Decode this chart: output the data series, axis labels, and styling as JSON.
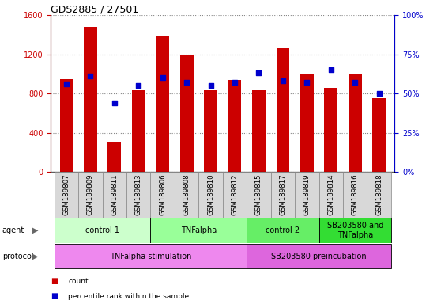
{
  "title": "GDS2885 / 27501",
  "samples": [
    "GSM189807",
    "GSM189809",
    "GSM189811",
    "GSM189813",
    "GSM189806",
    "GSM189808",
    "GSM189810",
    "GSM189812",
    "GSM189815",
    "GSM189817",
    "GSM189819",
    "GSM189814",
    "GSM189816",
    "GSM189818"
  ],
  "counts": [
    950,
    1480,
    310,
    830,
    1380,
    1200,
    830,
    940,
    830,
    1260,
    1000,
    860,
    1000,
    750
  ],
  "percentiles": [
    56,
    61,
    44,
    55,
    60,
    57,
    55,
    57,
    63,
    58,
    57,
    65,
    57,
    50
  ],
  "bar_color": "#CC0000",
  "dot_color": "#0000CC",
  "ylim_left": [
    0,
    1600
  ],
  "ylim_right": [
    0,
    100
  ],
  "yticks_left": [
    0,
    400,
    800,
    1200,
    1600
  ],
  "ytick_labels_right": [
    "0%",
    "25%",
    "50%",
    "75%",
    "100%"
  ],
  "yticks_right": [
    0,
    25,
    50,
    75,
    100
  ],
  "agent_groups": [
    {
      "label": "control 1",
      "start": 0,
      "end": 3,
      "color": "#CCFFCC"
    },
    {
      "label": "TNFalpha",
      "start": 4,
      "end": 7,
      "color": "#99FF99"
    },
    {
      "label": "control 2",
      "start": 8,
      "end": 10,
      "color": "#66EE66"
    },
    {
      "label": "SB203580 and\nTNFalpha",
      "start": 11,
      "end": 13,
      "color": "#33DD33"
    }
  ],
  "protocol_groups": [
    {
      "label": "TNFalpha stimulation",
      "start": 0,
      "end": 7,
      "color": "#EE88EE"
    },
    {
      "label": "SB203580 preincubation",
      "start": 8,
      "end": 13,
      "color": "#DD66DD"
    }
  ],
  "legend_count_color": "#CC0000",
  "legend_dot_color": "#0000CC",
  "bg_color": "#FFFFFF",
  "tick_label_color_left": "#CC0000",
  "tick_label_color_right": "#0000CC",
  "cell_bg": "#D8D8D8",
  "bar_width": 0.55
}
